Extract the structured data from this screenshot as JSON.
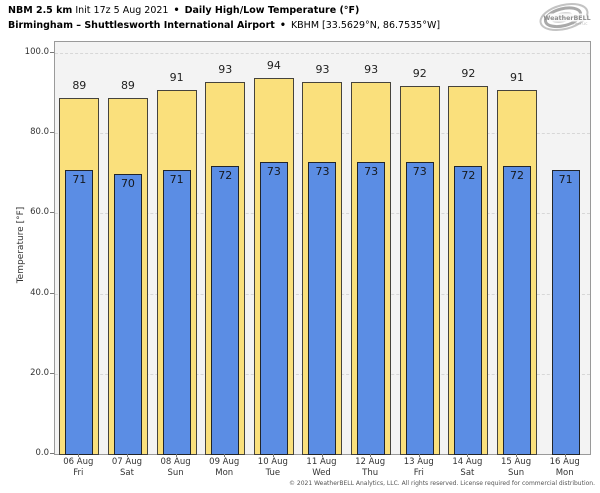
{
  "header": {
    "title_bold_model": "NBM 2.5 km",
    "title_init": "Init 17z 5 Aug 2021",
    "separator": "•",
    "title_product": "Daily High/Low Temperature (°F)",
    "subtitle_station": "Birmingham – Shuttlesworth International Airport",
    "subtitle_id": "KBHM [33.5629°N, 86.7535°W]",
    "logo_text": "WeatherBELL",
    "logo_subtext": "Analytics LLC"
  },
  "chart_data": {
    "type": "bar",
    "title": "NBM 2.5 km Init 17z 5 Aug 2021 • Daily High/Low Temperature (°F)",
    "subtitle": "Birmingham – Shuttlesworth International Airport • KBHM [33.5629°N, 86.7535°W]",
    "categories": [
      {
        "date": "06 Aug",
        "day": "Fri"
      },
      {
        "date": "07 Aug",
        "day": "Sat"
      },
      {
        "date": "08 Aug",
        "day": "Sun"
      },
      {
        "date": "09 Aug",
        "day": "Mon"
      },
      {
        "date": "10 Aug",
        "day": "Tue"
      },
      {
        "date": "11 Aug",
        "day": "Wed"
      },
      {
        "date": "12 Aug",
        "day": "Thu"
      },
      {
        "date": "13 Aug",
        "day": "Fri"
      },
      {
        "date": "14 Aug",
        "day": "Sat"
      },
      {
        "date": "15 Aug",
        "day": "Sun"
      },
      {
        "date": "16 Aug",
        "day": "Mon"
      }
    ],
    "series": [
      {
        "name": "Daily High",
        "color": "#fae07c",
        "edge_color": "#45433c",
        "values": [
          89,
          89,
          91,
          93,
          94,
          93,
          93,
          92,
          92,
          91,
          null
        ]
      },
      {
        "name": "Daily Low",
        "color": "#5b8de4",
        "edge_color": "#21252b",
        "values": [
          71,
          70,
          71,
          72,
          73,
          73,
          73,
          73,
          72,
          72,
          71
        ]
      }
    ],
    "xlabel": "",
    "ylabel": "Temperature [°F]",
    "ylim": [
      0,
      100
    ],
    "yticks": [
      0,
      20,
      40,
      60,
      80,
      100
    ],
    "ytick_labels": [
      "0.0",
      "20.0",
      "40.0",
      "60.0",
      "80.0",
      "100.0"
    ],
    "grid": true,
    "legend_position": "none",
    "plot_background": "#f3f3f3"
  },
  "footer": {
    "copyright": "© 2021 WeatherBELL Analytics, LLC. All rights reserved. License required for commercial distribution."
  }
}
